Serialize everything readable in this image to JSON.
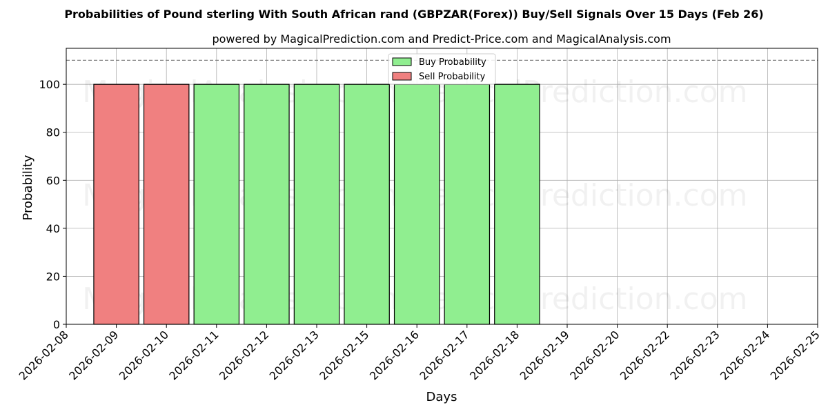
{
  "chart_data": {
    "type": "bar",
    "title": "Probabilities of Pound sterling With South African rand (GBPZAR(Forex)) Buy/Sell Signals Over 15 Days (Feb 26)",
    "subtitle": "powered by MagicalPrediction.com and Predict-Price.com and MagicalAnalysis.com",
    "xlabel": "Days",
    "ylabel": "Probability",
    "ylim": [
      0,
      115
    ],
    "yticks": [
      0,
      20,
      40,
      60,
      80,
      100
    ],
    "reference_line": 110,
    "grid": true,
    "legend_position": "top-center",
    "categories": [
      "2026-02-08",
      "2026-02-09",
      "2026-02-10",
      "2026-02-11",
      "2026-02-12",
      "2026-02-13",
      "2026-02-15",
      "2026-02-16",
      "2026-02-17",
      "2026-02-18",
      "2026-02-19",
      "2026-02-20",
      "2026-02-22",
      "2026-02-23",
      "2026-02-24",
      "2026-02-25"
    ],
    "series": [
      {
        "name": "Buy Probability",
        "color": "#90ee90",
        "values": [
          null,
          null,
          null,
          100,
          100,
          100,
          100,
          100,
          100,
          100,
          null,
          null,
          null,
          null,
          null,
          null
        ]
      },
      {
        "name": "Sell Probability",
        "color": "#f08080",
        "values": [
          null,
          100,
          100,
          null,
          null,
          null,
          null,
          null,
          null,
          null,
          null,
          null,
          null,
          null,
          null,
          null
        ]
      }
    ],
    "watermarks": [
      "MagicalAnalysis.com",
      "MagicalPrediction.com"
    ]
  }
}
